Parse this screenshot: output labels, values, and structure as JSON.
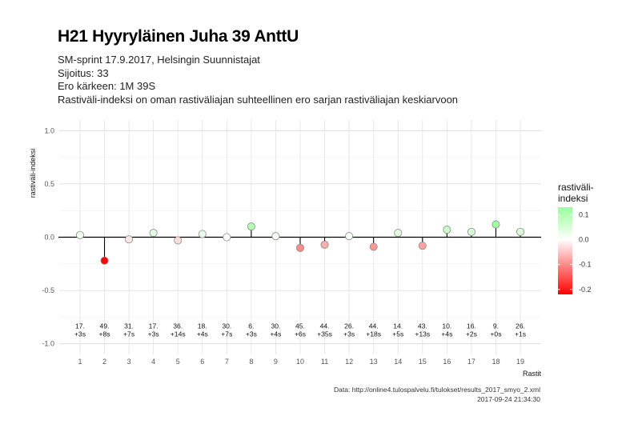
{
  "header": {
    "title": "H21 Hyyryläinen Juha 39 AnttU",
    "subtitle_lines": [
      "SM-sprint 17.9.2017, Helsingin Suunnistajat",
      "Sijoitus: 33",
      "Ero kärkeen: 1M 39S",
      "Rastiväli-indeksi on oman rastiväliajan suhteellinen ero sarjan rastiväliajan keskiarvoon"
    ]
  },
  "caption": {
    "source": "Data: http://online4.tulospalvelu.fi/tulokset/results_2017_smyo_2.xml",
    "timestamp": "2017-09-24 21:34:30"
  },
  "legend": {
    "title_line1": "rastiväli-",
    "title_line2": "indeksi",
    "ticks": [
      "0.1",
      "0.0",
      "-0.1",
      "-0.2"
    ],
    "tick_values": [
      0.1,
      0.0,
      -0.1,
      -0.2
    ],
    "range": [
      -0.22,
      0.13
    ],
    "colors": {
      "low": "#ff0000",
      "mid": "#ffffff",
      "high": "#99ff99"
    }
  },
  "chart_data": {
    "type": "scatter",
    "style": "lollipop",
    "xlabel": "Rastit",
    "ylabel": "rastiväli-indeksi",
    "ylim": [
      -1.0,
      1.0
    ],
    "yticks": [
      "1.0",
      "0.5",
      "0.0",
      "-0.5",
      "-1.0"
    ],
    "ytick_values": [
      1.0,
      0.5,
      0.0,
      -0.5,
      -1.0
    ],
    "x": [
      1,
      2,
      3,
      4,
      5,
      6,
      7,
      8,
      9,
      10,
      11,
      12,
      13,
      14,
      15,
      16,
      17,
      18,
      19
    ],
    "xticks": [
      "1",
      "2",
      "3",
      "4",
      "5",
      "6",
      "7",
      "8",
      "9",
      "10",
      "11",
      "12",
      "13",
      "14",
      "15",
      "16",
      "17",
      "18",
      "19"
    ],
    "values": [
      0.02,
      -0.22,
      -0.02,
      0.04,
      -0.03,
      0.03,
      0.0,
      0.1,
      0.01,
      -0.1,
      -0.07,
      0.01,
      -0.09,
      0.04,
      -0.08,
      0.07,
      0.05,
      0.12,
      0.05
    ],
    "annotations": [
      {
        "rank": "17.",
        "diff": "+3s"
      },
      {
        "rank": "49.",
        "diff": "+8s"
      },
      {
        "rank": "31.",
        "diff": "+7s"
      },
      {
        "rank": "17.",
        "diff": "+3s"
      },
      {
        "rank": "36.",
        "diff": "+14s"
      },
      {
        "rank": "18.",
        "diff": "+4s"
      },
      {
        "rank": "30.",
        "diff": "+7s"
      },
      {
        "rank": "6.",
        "diff": "+3s"
      },
      {
        "rank": "30.",
        "diff": "+4s"
      },
      {
        "rank": "45.",
        "diff": "+6s"
      },
      {
        "rank": "44.",
        "diff": "+35s"
      },
      {
        "rank": "26.",
        "diff": "+3s"
      },
      {
        "rank": "44.",
        "diff": "+18s"
      },
      {
        "rank": "14.",
        "diff": "+5s"
      },
      {
        "rank": "43.",
        "diff": "+13s"
      },
      {
        "rank": "10.",
        "diff": "+4s"
      },
      {
        "rank": "16.",
        "diff": "+2s"
      },
      {
        "rank": "9.",
        "diff": "+0s"
      },
      {
        "rank": "26.",
        "diff": "+1s"
      }
    ],
    "annotation_y": -0.9,
    "grid": true,
    "legend_position": "right"
  }
}
